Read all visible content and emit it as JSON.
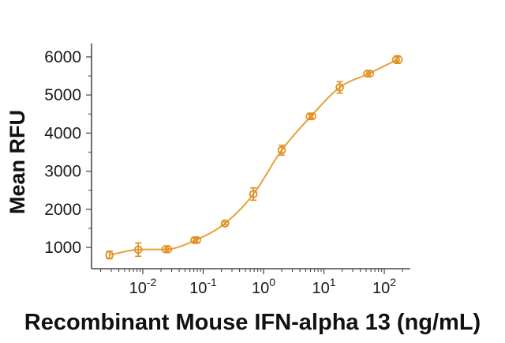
{
  "chart_data": {
    "type": "scatter",
    "subtype": "dose-response-curve",
    "title": "",
    "xlabel": "Recombinant Mouse IFN-alpha 13 (ng/mL)",
    "ylabel": "Mean RFU",
    "x_scale": "log10",
    "x_tick_exponents": [
      -2,
      -1,
      0,
      1,
      2
    ],
    "x_tick_base": "10",
    "y_ticks": [
      1000,
      2000,
      3000,
      4000,
      5000,
      6000
    ],
    "y_minor_ticks": [
      1500,
      2500,
      3500,
      4500,
      5500
    ],
    "xlim_log10": [
      -2.85,
      2.43
    ],
    "ylim": [
      440,
      6350
    ],
    "grid": false,
    "legend": null,
    "series": [
      {
        "name": "Mean RFU",
        "x_ng_ml": [
          0.0028,
          0.0084,
          0.025,
          0.075,
          0.23,
          0.68,
          2.0,
          6.1,
          18.3,
          55,
          165
        ],
        "y_mean_rfu": [
          800,
          940,
          950,
          1190,
          1630,
          2400,
          3550,
          4440,
          5200,
          5560,
          5930
        ],
        "y_err": [
          100,
          175,
          90,
          60,
          40,
          160,
          130,
          60,
          150,
          80,
          100
        ],
        "double_marker": [
          false,
          false,
          true,
          true,
          false,
          false,
          false,
          true,
          false,
          true,
          true
        ]
      }
    ],
    "colors": {
      "curve": "#E5A139",
      "marker": "#E0901F",
      "axis": "#4d4d4d",
      "tick_text": "#1a1a1a"
    }
  }
}
